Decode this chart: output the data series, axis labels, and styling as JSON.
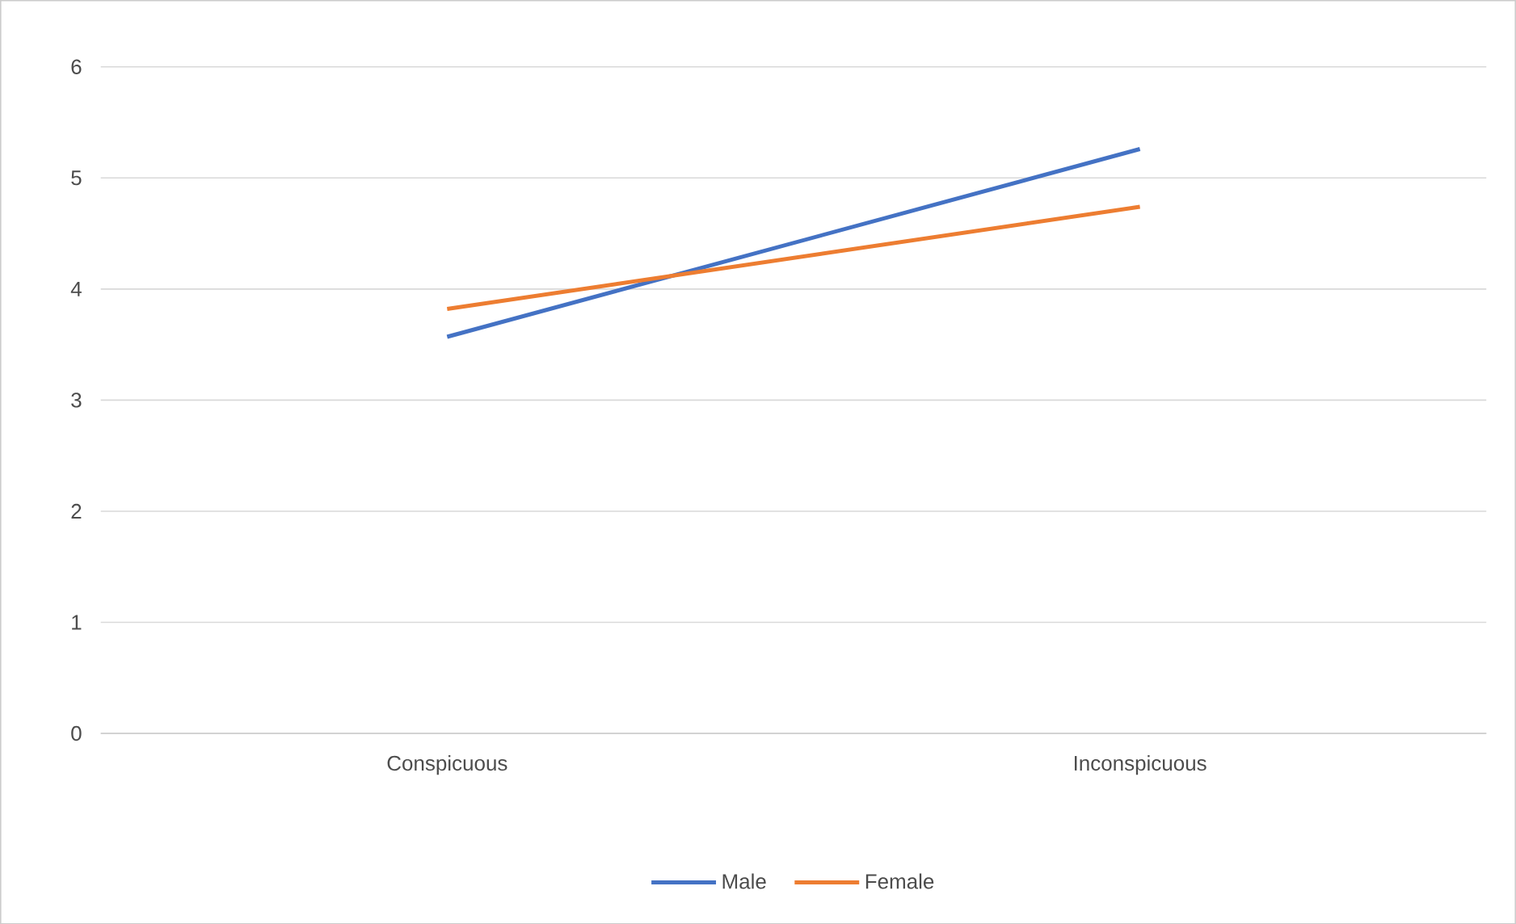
{
  "chart_data": {
    "type": "line",
    "categories": [
      "Conspicuous",
      "Inconspicuous"
    ],
    "series": [
      {
        "name": "Male",
        "color": "#4472c4",
        "values": [
          3.57,
          5.26
        ]
      },
      {
        "name": "Female",
        "color": "#ed7d31",
        "values": [
          3.82,
          4.74
        ]
      }
    ],
    "ylim": [
      0,
      6
    ],
    "yticks": [
      0,
      1,
      2,
      3,
      4,
      5,
      6
    ],
    "grid": "y",
    "legend": "bottom",
    "marker": "none",
    "line_style": "solid"
  }
}
